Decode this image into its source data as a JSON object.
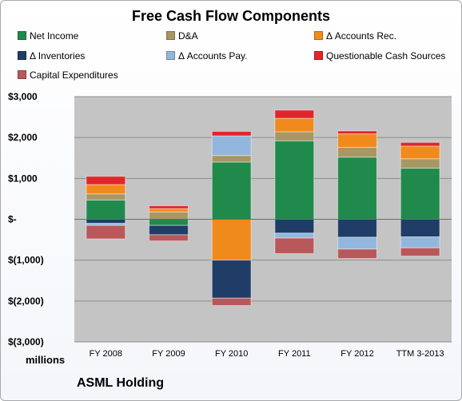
{
  "chart_data": {
    "type": "bar",
    "stacked": true,
    "title": "Free Cash Flow Components",
    "categories": [
      "FY 2008",
      "FY 2009",
      "FY 2010",
      "FY 2011",
      "FY 2012",
      "TTM 3-2013"
    ],
    "series": [
      {
        "name": "Net Income",
        "color": "#1f8a4c",
        "values": [
          470,
          -150,
          1400,
          1920,
          1520,
          1250
        ]
      },
      {
        "name": "D&A",
        "color": "#a89664",
        "values": [
          150,
          180,
          160,
          220,
          240,
          230
        ]
      },
      {
        "name": "Δ Accounts Rec.",
        "color": "#f08a1c",
        "values": [
          230,
          80,
          -1000,
          330,
          330,
          310
        ]
      },
      {
        "name": "Δ Inventories",
        "color": "#1f3d66",
        "values": [
          -100,
          -230,
          -930,
          -340,
          -440,
          -430
        ]
      },
      {
        "name": "Δ Accounts Pay.",
        "color": "#93b6dc",
        "values": [
          -50,
          0,
          480,
          -120,
          -290,
          -270
        ]
      },
      {
        "name": "Questionable Cash Sources",
        "color": "#e0262b",
        "values": [
          200,
          70,
          110,
          200,
          70,
          90
        ]
      },
      {
        "name": "Capital Expenditures",
        "color": "#b8585a",
        "values": [
          -330,
          -150,
          -180,
          -380,
          -230,
          -200
        ]
      }
    ],
    "ylim": [
      -3000,
      3000
    ],
    "yticks": [
      3000,
      2000,
      1000,
      0,
      -1000,
      -2000,
      -3000
    ],
    "ytick_labels": [
      "$3,000",
      "$2,000",
      "$1,000",
      "$-",
      "$(1,000)",
      "$(2,000)",
      "$(3,000)"
    ],
    "ylabel": "millions",
    "grid": true,
    "legend_position": "top",
    "plot_background": "#c4c4c4"
  },
  "footer": {
    "company": "ASML Holding"
  }
}
